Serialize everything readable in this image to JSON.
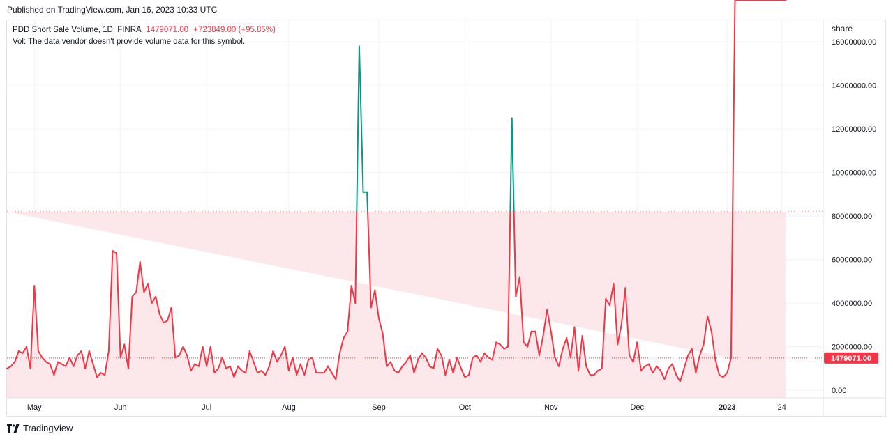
{
  "header": {
    "published": "Published on TradingView.com, Jan 16, 2023 10:33 UTC"
  },
  "legend": {
    "title": "PDD Short Sale Volume, 1D, FINRA",
    "last_value": "1479071.00",
    "change": "+723849.00 (+95.85%)",
    "vol_note": "Vol: The data vendor doesn't provide volume data for this symbol."
  },
  "price_axis": {
    "unit": "share"
  },
  "footer": {
    "brand": "TradingView"
  },
  "colors": {
    "line_down": "#f23645",
    "line_up": "#089981",
    "fill": "#fce4e6",
    "grid": "#f0f3fa"
  },
  "chart_data": {
    "type": "line",
    "series": [
      {
        "values": [
          1000000,
          1100000,
          1300000,
          1800000,
          1700000,
          2000000,
          1000000,
          4800000,
          1800000,
          1500000,
          1300000,
          1200000,
          700000,
          1300000,
          1200000,
          1100000,
          1500000,
          1100000,
          1600000,
          1800000,
          1000000,
          1800000,
          1200000,
          600000,
          800000,
          700000,
          1800000,
          6400000,
          6300000,
          1500000,
          2100000,
          1000000,
          4300000,
          4500000,
          5900000,
          4500000,
          4900000,
          4000000,
          4300000,
          3500000,
          3100000,
          3200000,
          3800000,
          1500000,
          1600000,
          2000000,
          1600000,
          900000,
          1200000,
          1100000,
          2000000,
          1100000,
          2000000,
          800000,
          1000000,
          1500000,
          1000000,
          1100000,
          600000,
          1100000,
          900000,
          800000,
          1800000,
          1300000,
          800000,
          900000,
          700000,
          1100000,
          1800000,
          1300000,
          1600000,
          2000000,
          900000,
          1500000,
          700000,
          1200000,
          700000,
          1400000,
          1500000,
          800000,
          800000,
          800000,
          1100000,
          800000,
          500000,
          1700000,
          2400000,
          2700000,
          4800000,
          4000000,
          15800000,
          9100000,
          9100000,
          3800000,
          4600000,
          3300000,
          2600000,
          1100000,
          1300000,
          900000,
          800000,
          1100000,
          1300000,
          1600000,
          800000,
          1400000,
          1700000,
          1500000,
          1100000,
          1000000,
          1900000,
          1600000,
          700000,
          1400000,
          800000,
          1500000,
          1000000,
          600000,
          700000,
          1500000,
          1600000,
          1300000,
          1700000,
          1500000,
          1400000,
          2200000,
          2100000,
          1900000,
          2000000,
          12500000,
          4300000,
          5200000,
          2200000,
          2000000,
          2700000,
          2700000,
          1600000,
          2500000,
          3700000,
          2700000,
          1500000,
          1100000,
          1900000,
          2400000,
          1500000,
          2900000,
          900000,
          2500000,
          1100000,
          700000,
          700000,
          900000,
          1000000,
          4200000,
          3900000,
          4900000,
          2100000,
          3000000,
          4700000,
          1600000,
          1300000,
          2200000,
          900000,
          1100000,
          1200000,
          800000,
          1100000,
          900000,
          500000,
          1000000,
          1200000,
          700000,
          400000,
          1000000,
          1600000,
          1900000,
          800000,
          1600000,
          2100000,
          3400000,
          2700000,
          1400000,
          700000,
          600000,
          800000,
          1479071
        ]
      }
    ],
    "ylim": [
      -350000,
      17000000
    ],
    "y_ticks": [
      "0.00",
      "2000000.00",
      "4000000.00",
      "6000000.00",
      "8000000.00",
      "10000000.00",
      "12000000.00",
      "14000000.00",
      "16000000.00"
    ],
    "y_tick_values": [
      0,
      2000000,
      4000000,
      6000000,
      8000000,
      10000000,
      12000000,
      14000000,
      16000000
    ],
    "x_ticks": [
      {
        "label": "May",
        "index": 7
      },
      {
        "label": "Jun",
        "index": 29
      },
      {
        "label": "Jul",
        "index": 51
      },
      {
        "label": "Aug",
        "index": 72
      },
      {
        "label": "Sep",
        "index": 95
      },
      {
        "label": "Oct",
        "index": 117
      },
      {
        "label": "Nov",
        "index": 139
      },
      {
        "label": "Dec",
        "index": 161
      },
      {
        "label": "2023",
        "index": 184,
        "bold": true
      },
      {
        "label": "24",
        "index": 198
      }
    ],
    "x_count": 200,
    "reference_line": 8200000,
    "last_value": 1479071,
    "last_label": "1479071.00",
    "grid": true
  }
}
